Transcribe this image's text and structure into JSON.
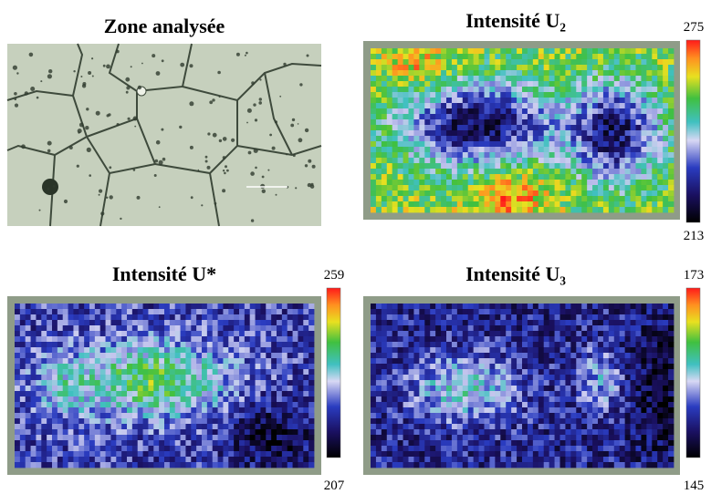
{
  "panels": [
    {
      "title": "Zone analysée"
    },
    {
      "title": "Intensité U₂",
      "scale_max": 275,
      "scale_min": 213
    },
    {
      "title": "Intensité U*",
      "scale_max": 259,
      "scale_min": 207
    },
    {
      "title": "Intensité U₃",
      "scale_max": 173,
      "scale_min": 145
    }
  ]
}
